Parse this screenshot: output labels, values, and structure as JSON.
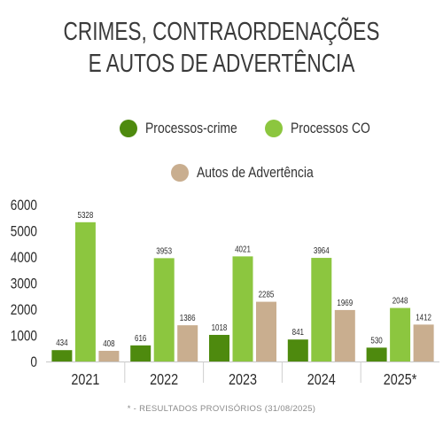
{
  "title": "CRIMES, CONTRAORDENAÇÕES E AUTOS DE ADVERTÊNCIA",
  "footnote": "* - RESULTADOS PROVISÓRIOS (31/08/2025)",
  "colors": {
    "Processos-crime": "#4e8a0e",
    "Processos CO": "#8cc63f",
    "Autos de Advertência": "#c9ae8f"
  },
  "chart_data": {
    "type": "bar",
    "title": "CRIMES, CONTRAORDENAÇÕES E AUTOS DE ADVERTÊNCIA",
    "categories": [
      "2021",
      "2022",
      "2023",
      "2024",
      "2025*"
    ],
    "series": [
      {
        "name": "Processos-crime",
        "values": [
          434,
          616,
          1018,
          841,
          530
        ]
      },
      {
        "name": "Processos CO",
        "values": [
          5328,
          3953,
          4021,
          3964,
          2048
        ]
      },
      {
        "name": "Autos de Advertência",
        "values": [
          408,
          1386,
          2285,
          1969,
          1412
        ]
      }
    ],
    "yticks": [
      0,
      1000,
      2000,
      3000,
      4000,
      5000,
      6000
    ],
    "ylim": [
      0,
      6000
    ],
    "xlabel": "",
    "ylabel": "",
    "grid": false,
    "legend": "top-center",
    "data_labels": true
  }
}
